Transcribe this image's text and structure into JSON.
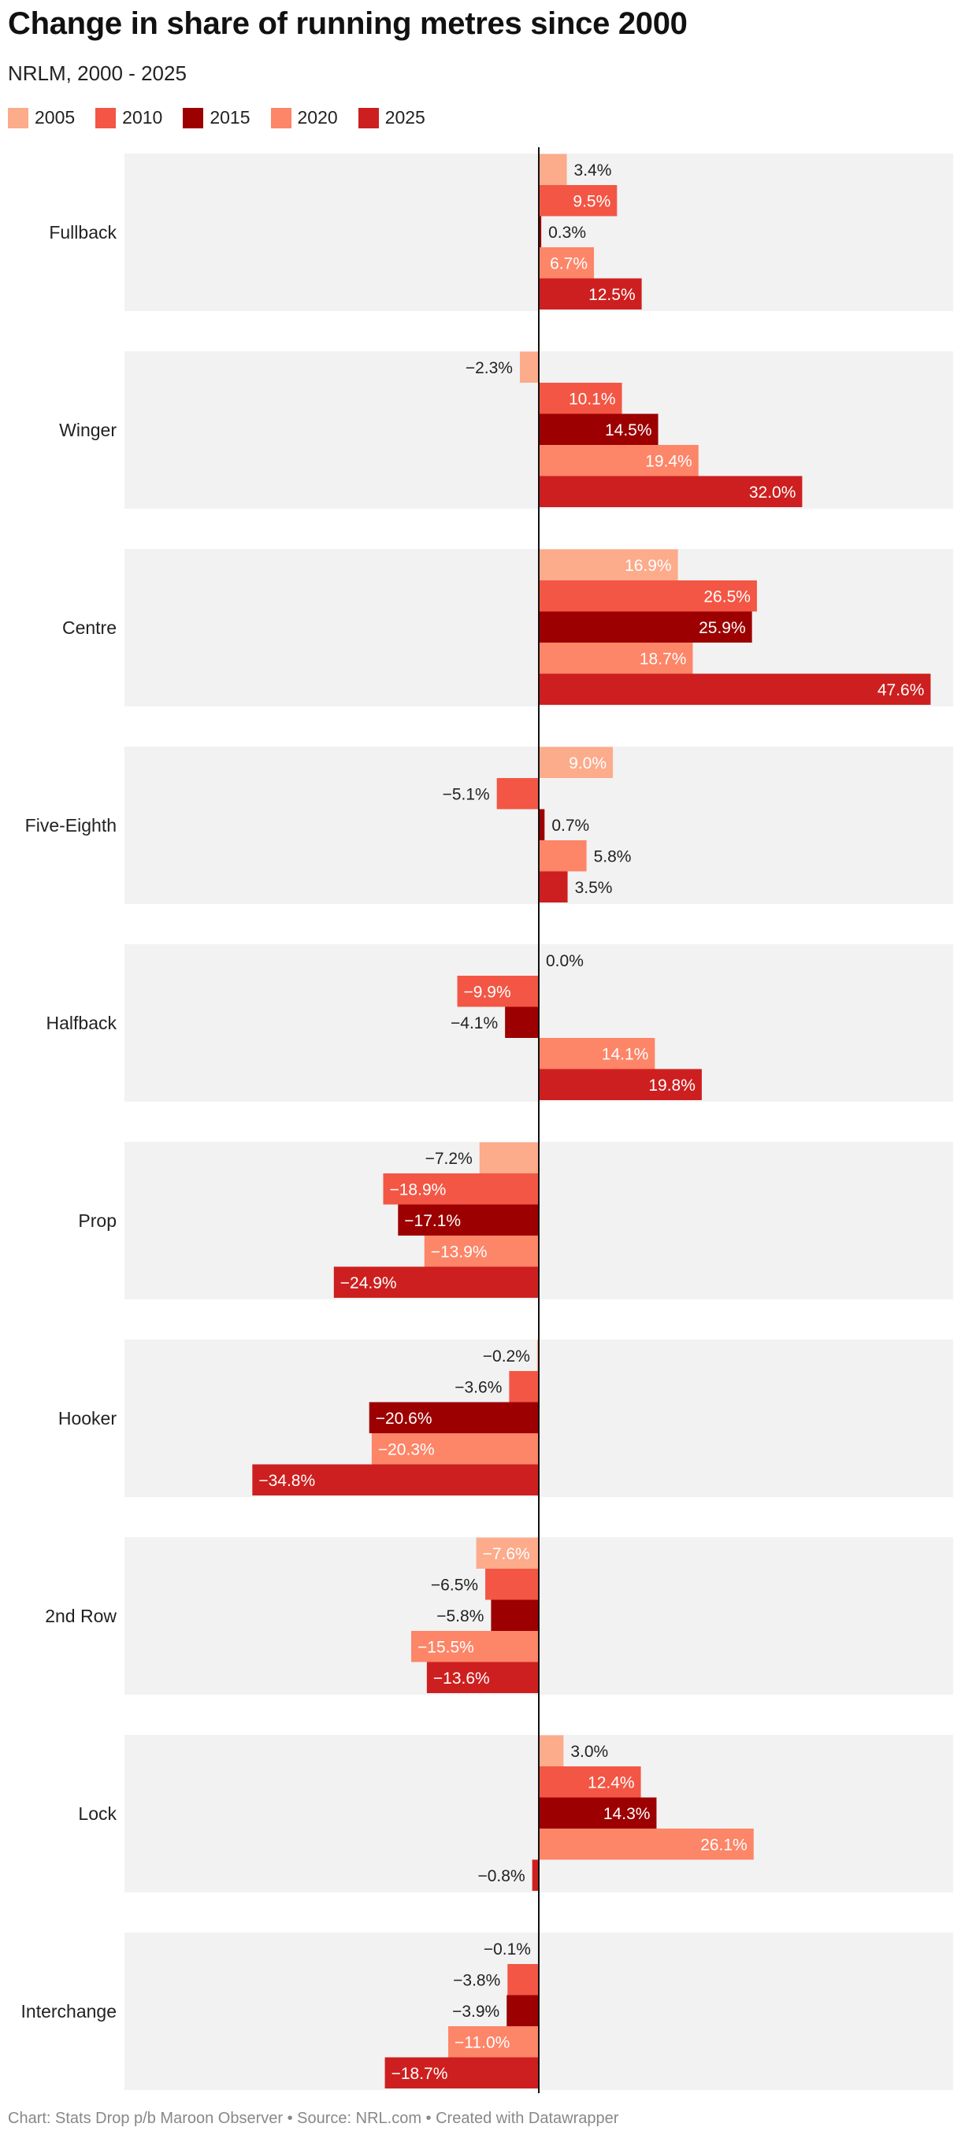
{
  "title": "Change in share of running metres since 2000",
  "subtitle": "NRLM, 2000 - 2025",
  "footer": "Chart: Stats Drop p/b Maroon Observer • Source: NRL.com • Created with Datawrapper",
  "colors": {
    "2005": "#fcab8b",
    "2010": "#f35644",
    "2015": "#9c0000",
    "2020": "#fd8568",
    "2025": "#cd1f1f",
    "band": "#f2f2f2",
    "axis": "#111111"
  },
  "legend": [
    {
      "label": "2005",
      "color": "#fcab8b"
    },
    {
      "label": "2010",
      "color": "#f35644"
    },
    {
      "label": "2015",
      "color": "#9c0000"
    },
    {
      "label": "2020",
      "color": "#fd8568"
    },
    {
      "label": "2025",
      "color": "#cd1f1f"
    }
  ],
  "chart_data": {
    "type": "bar",
    "orientation": "horizontal",
    "categories": [
      "Fullback",
      "Winger",
      "Centre",
      "Five-Eighth",
      "Halfback",
      "Prop",
      "Hooker",
      "2nd Row",
      "Lock",
      "Interchange"
    ],
    "series": [
      {
        "name": "2005",
        "values": [
          3.4,
          -2.3,
          16.9,
          9.0,
          0.0,
          -7.2,
          -0.2,
          -7.6,
          3.0,
          -0.1
        ]
      },
      {
        "name": "2010",
        "values": [
          9.5,
          10.1,
          26.5,
          -5.1,
          -9.9,
          -18.9,
          -3.6,
          -6.5,
          12.4,
          -3.8
        ]
      },
      {
        "name": "2015",
        "values": [
          0.3,
          14.5,
          25.9,
          0.7,
          -4.1,
          -17.1,
          -20.6,
          -5.8,
          14.3,
          -3.9
        ]
      },
      {
        "name": "2020",
        "values": [
          6.7,
          19.4,
          18.7,
          5.8,
          14.1,
          -13.9,
          -20.3,
          -15.5,
          26.1,
          -11.0
        ]
      },
      {
        "name": "2025",
        "values": [
          12.5,
          32.0,
          47.6,
          3.5,
          19.8,
          -24.9,
          -34.8,
          -13.6,
          -0.8,
          -18.7
        ]
      }
    ],
    "value_suffix": "%",
    "xlim": [
      -35,
      50
    ],
    "legend_position": "top-left",
    "grid": false
  }
}
